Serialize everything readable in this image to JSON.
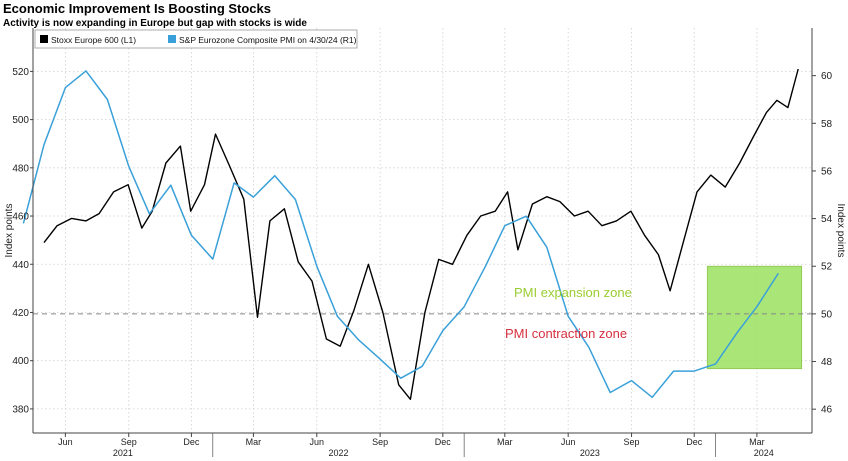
{
  "header": {
    "title": "Economic Improvement Is Boosting Stocks",
    "subtitle": "Activity is now expanding in Europe but gap with stocks is wide"
  },
  "chart_data": {
    "type": "line",
    "title": "Economic Improvement Is Boosting Stocks",
    "subtitle": "Activity is now expanding in Europe but gap with stocks is wide",
    "ylabel_left": "Index points",
    "ylabel_right": "Index points",
    "ylim_left": [
      370,
      538
    ],
    "ylim_right": [
      45,
      62
    ],
    "yticks_left": [
      380,
      400,
      420,
      440,
      460,
      480,
      500,
      520
    ],
    "yticks_right": [
      46,
      48,
      50,
      52,
      54,
      56,
      58,
      60
    ],
    "x_month_labels": [
      "Jun",
      "Sep",
      "Dec",
      "Mar",
      "Jun",
      "Sep",
      "Dec",
      "Mar",
      "Jun",
      "Sep",
      "Dec",
      "Mar"
    ],
    "x_year_labels": [
      "2021",
      "2022",
      "2023",
      "2024"
    ],
    "grid": true,
    "legend_position": "top-left",
    "legend": [
      {
        "label": "Stoxx Europe 600 (L1)",
        "color": "#000000"
      },
      {
        "label": "S&P Eurozone Composite PMI on 4/30/24 (R1)",
        "color": "#3aa0d9"
      }
    ],
    "series": [
      {
        "name": "Stoxx Europe 600 (L1)",
        "axis": "left",
        "color": "#000000",
        "x": [
          "2021-05-01",
          "2021-05-20",
          "2021-06-10",
          "2021-07-01",
          "2021-07-20",
          "2021-08-10",
          "2021-08-31",
          "2021-09-20",
          "2021-10-05",
          "2021-10-25",
          "2021-11-15",
          "2021-11-30",
          "2021-12-20",
          "2022-01-05",
          "2022-01-25",
          "2022-02-15",
          "2022-03-07",
          "2022-03-25",
          "2022-04-15",
          "2022-05-05",
          "2022-05-25",
          "2022-06-15",
          "2022-07-05",
          "2022-07-25",
          "2022-08-15",
          "2022-09-05",
          "2022-09-28",
          "2022-10-15",
          "2022-11-05",
          "2022-11-25",
          "2022-12-15",
          "2023-01-05",
          "2023-01-25",
          "2023-02-15",
          "2023-03-05",
          "2023-03-20",
          "2023-04-10",
          "2023-05-01",
          "2023-05-20",
          "2023-06-10",
          "2023-06-30",
          "2023-07-20",
          "2023-08-10",
          "2023-08-31",
          "2023-09-20",
          "2023-10-10",
          "2023-10-27",
          "2023-11-15",
          "2023-12-05",
          "2023-12-25",
          "2024-01-15",
          "2024-02-05",
          "2024-02-25",
          "2024-03-15",
          "2024-03-30",
          "2024-04-15",
          "2024-04-30"
        ],
        "values": [
          449,
          456,
          459,
          458,
          461,
          470,
          473,
          455,
          462,
          482,
          489,
          462,
          473,
          494,
          481,
          467,
          418,
          458,
          463,
          441,
          433,
          409,
          406,
          421,
          440,
          420,
          390,
          384,
          420,
          442,
          440,
          452,
          460,
          462,
          470,
          446,
          465,
          468,
          466,
          460,
          462,
          456,
          458,
          462,
          452,
          444,
          429,
          449,
          470,
          477,
          472,
          482,
          493,
          503,
          508,
          505,
          521
        ]
      },
      {
        "name": "S&P Eurozone Composite PMI on 4/30/24 (R1)",
        "axis": "right",
        "color": "#3aa0d9",
        "x": [
          "2021-04-01",
          "2021-05-01",
          "2021-06-01",
          "2021-07-01",
          "2021-08-01",
          "2021-09-01",
          "2021-10-01",
          "2021-11-01",
          "2021-12-01",
          "2022-01-01",
          "2022-02-01",
          "2022-03-01",
          "2022-04-01",
          "2022-05-01",
          "2022-06-01",
          "2022-07-01",
          "2022-08-01",
          "2022-09-01",
          "2022-10-01",
          "2022-11-01",
          "2022-12-01",
          "2023-01-01",
          "2023-02-01",
          "2023-03-01",
          "2023-04-01",
          "2023-05-01",
          "2023-06-01",
          "2023-07-01",
          "2023-08-01",
          "2023-09-01",
          "2023-10-01",
          "2023-11-01",
          "2023-12-01",
          "2024-01-01",
          "2024-02-01",
          "2024-03-01",
          "2024-04-01"
        ],
        "values": [
          53.8,
          57.1,
          59.5,
          60.2,
          59.0,
          56.2,
          54.2,
          55.4,
          53.3,
          52.3,
          55.5,
          54.9,
          55.8,
          54.8,
          52.0,
          49.9,
          48.9,
          48.1,
          47.3,
          47.8,
          49.3,
          50.3,
          52.0,
          53.7,
          54.1,
          52.8,
          49.9,
          48.6,
          46.7,
          47.2,
          46.5,
          47.6,
          47.6,
          47.9,
          49.2,
          50.3,
          51.7
        ]
      }
    ],
    "annotations": [
      {
        "text": "PMI expansion zone",
        "color": "#9acd32"
      },
      {
        "text": "PMI contraction zone",
        "color": "#d7303f"
      }
    ],
    "highlight_region": {
      "x_start": "2023-12-20",
      "x_end": "2024-05-05",
      "y_right": [
        47.7,
        52.0
      ],
      "color": "#9be060"
    },
    "reference_line": {
      "axis": "right",
      "value": 50,
      "style": "dashed"
    }
  }
}
